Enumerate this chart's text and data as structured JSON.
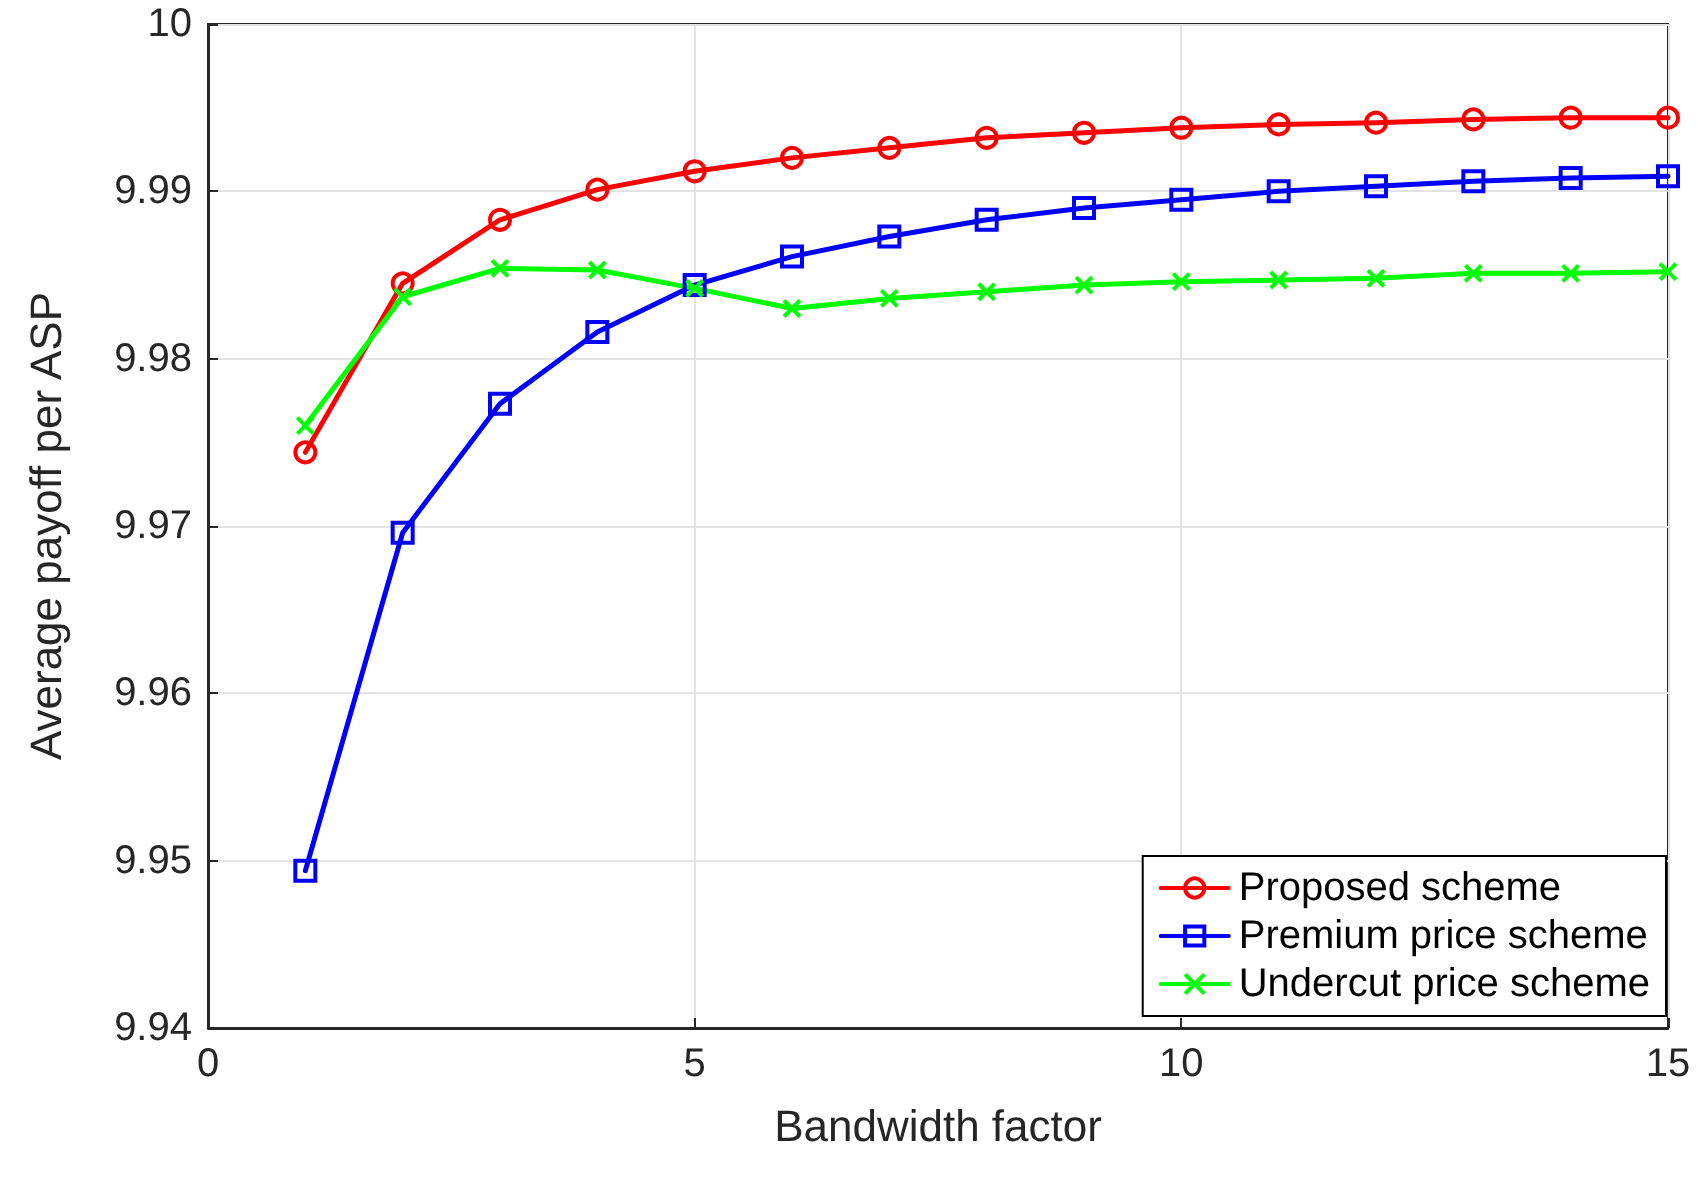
{
  "chart_data": {
    "type": "line",
    "xlabel": "Bandwidth factor",
    "ylabel": "Average payoff per ASP",
    "x": [
      1,
      2,
      3,
      4,
      5,
      6,
      7,
      8,
      9,
      10,
      11,
      12,
      13,
      14,
      15
    ],
    "xlim": [
      0,
      15
    ],
    "xticks": [
      0,
      5,
      10,
      15
    ],
    "ylim": [
      9.94,
      10
    ],
    "yticks": [
      9.94,
      9.95,
      9.96,
      9.97,
      9.98,
      9.99,
      10
    ],
    "grid": true,
    "legend": "bottom right",
    "line_style": "solid",
    "series": [
      {
        "name": "Proposed scheme",
        "color": "#ff0000",
        "marker": "circle",
        "values": [
          9.9744,
          9.9845,
          9.9883,
          9.9901,
          9.9912,
          9.992,
          9.9926,
          9.9932,
          9.9935,
          9.9938,
          9.994,
          9.9941,
          9.9943,
          9.9944,
          9.9944
        ]
      },
      {
        "name": "Premium price scheme",
        "color": "#0000ff",
        "marker": "square",
        "values": [
          9.9494,
          9.9696,
          9.9773,
          9.9816,
          9.9844,
          9.9861,
          9.9873,
          9.9883,
          9.989,
          9.9895,
          9.99,
          9.9903,
          9.9906,
          9.9908,
          9.9909
        ]
      },
      {
        "name": "Undercut price scheme",
        "color": "#00ff00",
        "marker": "cross",
        "values": [
          9.976,
          9.9837,
          9.9854,
          9.9853,
          9.9842,
          9.983,
          9.9836,
          9.984,
          9.9844,
          9.9846,
          9.9847,
          9.9848,
          9.9851,
          9.9851,
          9.9852
        ]
      }
    ]
  }
}
